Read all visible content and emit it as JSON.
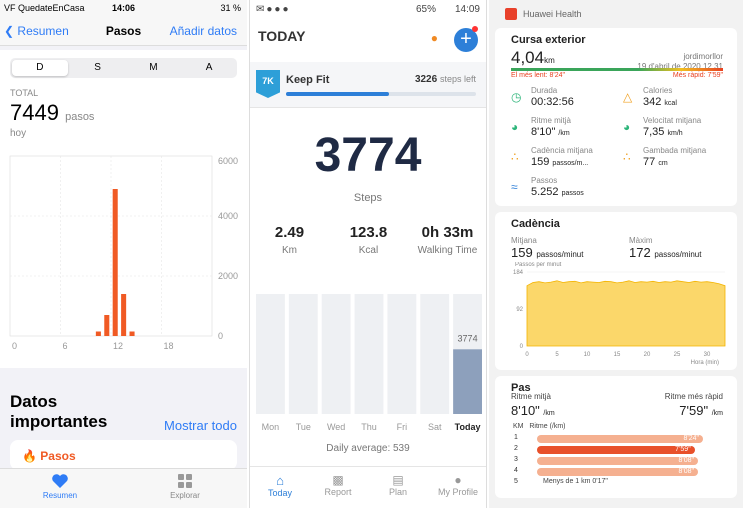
{
  "health": {
    "status": {
      "carrier": "VF QuedateEnCasa",
      "time": "14:06",
      "battery": "31 %"
    },
    "nav": {
      "back": "Resumen",
      "title": "Pasos",
      "add": "Añadir datos"
    },
    "segments": [
      "D",
      "S",
      "M",
      "A"
    ],
    "selected_segment": "D",
    "total_label": "TOTAL",
    "total_value": "7449",
    "total_unit": "pasos",
    "day_label": "hoy",
    "chart_data": {
      "type": "bar",
      "x_ticks": [
        "0",
        "6",
        "12",
        "18"
      ],
      "y_ticks": [
        "6000",
        "4000",
        "2000",
        "0"
      ],
      "ylim": [
        0,
        6000
      ],
      "hours": [
        8,
        9,
        10,
        11,
        12,
        13,
        14,
        15
      ],
      "values": [
        0,
        0,
        0,
        0,
        0,
        0,
        0,
        0,
        0,
        0,
        150,
        700,
        4900,
        1400,
        150,
        0
      ]
    },
    "highlights_title": "Datos importantes",
    "show_all": "Mostrar todo",
    "steps_card": "Pasos",
    "tabs": [
      "Resumen",
      "Explorar"
    ]
  },
  "pacer": {
    "status": {
      "battery": "65%",
      "time": "14:09"
    },
    "header": "TODAY",
    "goal": {
      "badge": "7K",
      "name": "Keep Fit",
      "left_value": "3226",
      "left_label": "steps left",
      "progress": 0.54
    },
    "steps": "3774",
    "steps_label": "Steps",
    "stats": [
      {
        "value": "2.49",
        "label": "Km"
      },
      {
        "value": "123.8",
        "label": "Kcal"
      },
      {
        "value": "0h 33m",
        "label": "Walking Time"
      }
    ],
    "chart_data": {
      "type": "bar",
      "categories": [
        "Mon",
        "Tue",
        "Wed",
        "Thu",
        "Fri",
        "Sat",
        "Today"
      ],
      "values": [
        0,
        0,
        0,
        0,
        0,
        0,
        3774
      ],
      "label": "3774",
      "ylim": [
        0,
        7000
      ]
    },
    "daily_average": "Daily average: 539",
    "tabs": [
      "Today",
      "Report",
      "Plan",
      "My Profile"
    ]
  },
  "huawei": {
    "app": "Huawei Health",
    "activity": {
      "title": "Cursa exterior",
      "distance": "4,04",
      "unit": "km",
      "user": "jordimorllor",
      "date": "19 d'abril de 2020 12.31",
      "range_low": "El més lent: 8'24\"",
      "range_high": "Més ràpid: 7'59\""
    },
    "metrics": [
      {
        "label": "Durada",
        "value": "00:32:56",
        "unit": "",
        "icon": "clock-icon"
      },
      {
        "label": "Calories",
        "value": "342",
        "unit": "kcal",
        "icon": "flame-icon"
      },
      {
        "label": "Ritme mitjà",
        "value": "8'10\"",
        "unit": "/km",
        "icon": "gauge-icon"
      },
      {
        "label": "Velocitat mitjana",
        "value": "7,35",
        "unit": "km/h",
        "icon": "speed-icon"
      },
      {
        "label": "Cadència mitjana",
        "value": "159",
        "unit": "passos/m...",
        "icon": "footprints-icon"
      },
      {
        "label": "Gambada mitjana",
        "value": "77",
        "unit": "cm",
        "icon": "stride-icon"
      },
      {
        "label": "Passos",
        "value": "5.252",
        "unit": "passos",
        "icon": "shoe-icon"
      }
    ],
    "cadence": {
      "title": "Cadència",
      "avg_label": "Mitjana",
      "avg_value": "159",
      "avg_unit": "passos/minut",
      "max_label": "Màxim",
      "max_value": "172",
      "max_unit": "passos/minut",
      "chart_data": {
        "type": "area",
        "ylabel": "Passos per minut",
        "xlabel": "Hora (min)",
        "y_ticks": [
          "184",
          "92",
          "0"
        ],
        "x_ticks": [
          "0",
          "5",
          "10",
          "15",
          "20",
          "25",
          "30"
        ],
        "ylim": [
          0,
          184
        ],
        "xlim": [
          0,
          33
        ],
        "x": [
          0,
          1,
          2,
          3,
          4,
          5,
          6,
          7,
          8,
          9,
          10,
          11,
          12,
          13,
          14,
          15,
          16,
          17,
          18,
          19,
          20,
          21,
          22,
          23,
          24,
          25,
          26,
          27,
          28,
          29,
          30,
          31,
          32,
          33
        ],
        "y": [
          150,
          158,
          160,
          157,
          159,
          162,
          158,
          160,
          161,
          157,
          160,
          159,
          158,
          161,
          160,
          157,
          159,
          162,
          158,
          160,
          159,
          161,
          158,
          160,
          159,
          162,
          160,
          158,
          161,
          159,
          160,
          158,
          155,
          150
        ]
      }
    },
    "pace": {
      "title": "Pas",
      "avg_label": "Ritme mitjà",
      "avg_value": "8'10\"",
      "avg_unit": "/km",
      "best_label": "Ritme més ràpid",
      "best_value": "7'59\"",
      "best_unit": "/km",
      "col_km": "KM",
      "col_pace": "Ritme (/km)",
      "splits": [
        {
          "km": "1",
          "time": "8'24\"",
          "frac": 1.0,
          "best": false
        },
        {
          "km": "2",
          "time": "7'59\"",
          "frac": 0.95,
          "best": true
        },
        {
          "km": "3",
          "time": "8'08\"",
          "frac": 0.97,
          "best": false
        },
        {
          "km": "4",
          "time": "8'08\"",
          "frac": 0.97,
          "best": false
        }
      ],
      "last": {
        "km": "5",
        "text": "Menys de 1 km 0'17\""
      }
    }
  }
}
